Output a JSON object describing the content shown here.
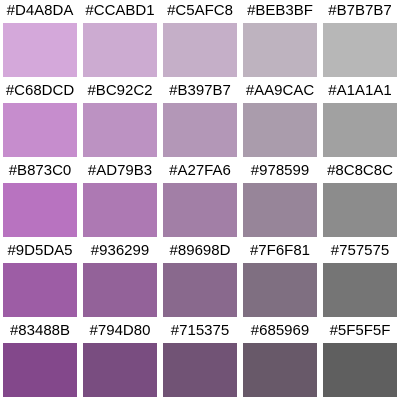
{
  "swatches": [
    [
      {
        "label": "#D4A8DA",
        "color": "#D4A8DA"
      },
      {
        "label": "#CCABD1",
        "color": "#CCABD1"
      },
      {
        "label": "#C5AFC8",
        "color": "#C5AFC8"
      },
      {
        "label": "#BEB3BF",
        "color": "#BEB3BF"
      },
      {
        "label": "#B7B7B7",
        "color": "#B7B7B7"
      }
    ],
    [
      {
        "label": "#C68DCD",
        "color": "#C68DCD"
      },
      {
        "label": "#BC92C2",
        "color": "#BC92C2"
      },
      {
        "label": "#B397B7",
        "color": "#B397B7"
      },
      {
        "label": "#AA9CAC",
        "color": "#AA9CAC"
      },
      {
        "label": "#A1A1A1",
        "color": "#A1A1A1"
      }
    ],
    [
      {
        "label": "#B873C0",
        "color": "#B873C0"
      },
      {
        "label": "#AD79B3",
        "color": "#AD79B3"
      },
      {
        "label": "#A27FA6",
        "color": "#A27FA6"
      },
      {
        "label": "#978599",
        "color": "#978599"
      },
      {
        "label": "#8C8C8C",
        "color": "#8C8C8C"
      }
    ],
    [
      {
        "label": "#9D5DA5",
        "color": "#9D5DA5"
      },
      {
        "label": "#936299",
        "color": "#936299"
      },
      {
        "label": "#89698D",
        "color": "#89698D"
      },
      {
        "label": "#7F6F81",
        "color": "#7F6F81"
      },
      {
        "label": "#757575",
        "color": "#757575"
      }
    ],
    [
      {
        "label": "#83488B",
        "color": "#83488B"
      },
      {
        "label": "#794D80",
        "color": "#794D80"
      },
      {
        "label": "#715375",
        "color": "#715375"
      },
      {
        "label": "#685969",
        "color": "#685969"
      },
      {
        "label": "#5F5F5F",
        "color": "#5F5F5F"
      }
    ]
  ]
}
